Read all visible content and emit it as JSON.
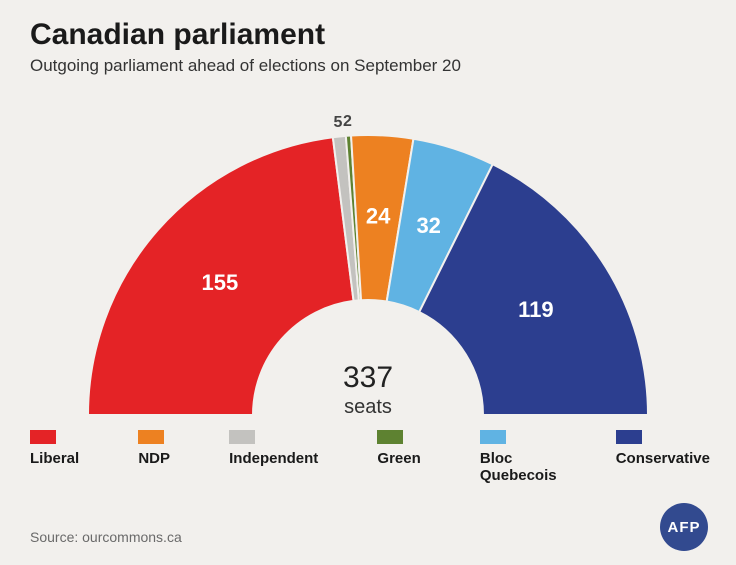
{
  "title": "Canadian parliament",
  "subtitle": "Outgoing parliament ahead of elections on September 20",
  "total": {
    "value": "337",
    "label": "seats"
  },
  "source": "Source: ourcommons.ca",
  "logo": "AFP",
  "chart": {
    "type": "semi-donut",
    "background": "#f2f0ed",
    "inner_radius": 115,
    "outer_radius": 280,
    "total_seats": 337,
    "parties": [
      {
        "key": "liberal",
        "name": "Liberal",
        "seats": 155,
        "color": "#e42326",
        "label_color": "#ffffff",
        "label_size": 22
      },
      {
        "key": "independent",
        "name": "Independent",
        "seats": 5,
        "color": "#c3c2bf",
        "label_color": "#444444",
        "label_size": 16,
        "label_outside": true
      },
      {
        "key": "green",
        "name": "Green",
        "seats": 2,
        "color": "#5e8231",
        "label_color": "#444444",
        "label_size": 16,
        "label_outside": true
      },
      {
        "key": "ndp",
        "name": "NDP",
        "seats": 24,
        "color": "#ed8121",
        "label_color": "#ffffff",
        "label_size": 22
      },
      {
        "key": "bloc",
        "name": "Bloc\nQuebecois",
        "seats": 32,
        "color": "#60b3e3",
        "label_color": "#ffffff",
        "label_size": 22
      },
      {
        "key": "conservative",
        "name": "Conservative",
        "seats": 119,
        "color": "#2c3e8f",
        "label_color": "#ffffff",
        "label_size": 22
      }
    ],
    "legend_order": [
      "liberal",
      "ndp",
      "independent",
      "green",
      "bloc",
      "conservative"
    ]
  }
}
